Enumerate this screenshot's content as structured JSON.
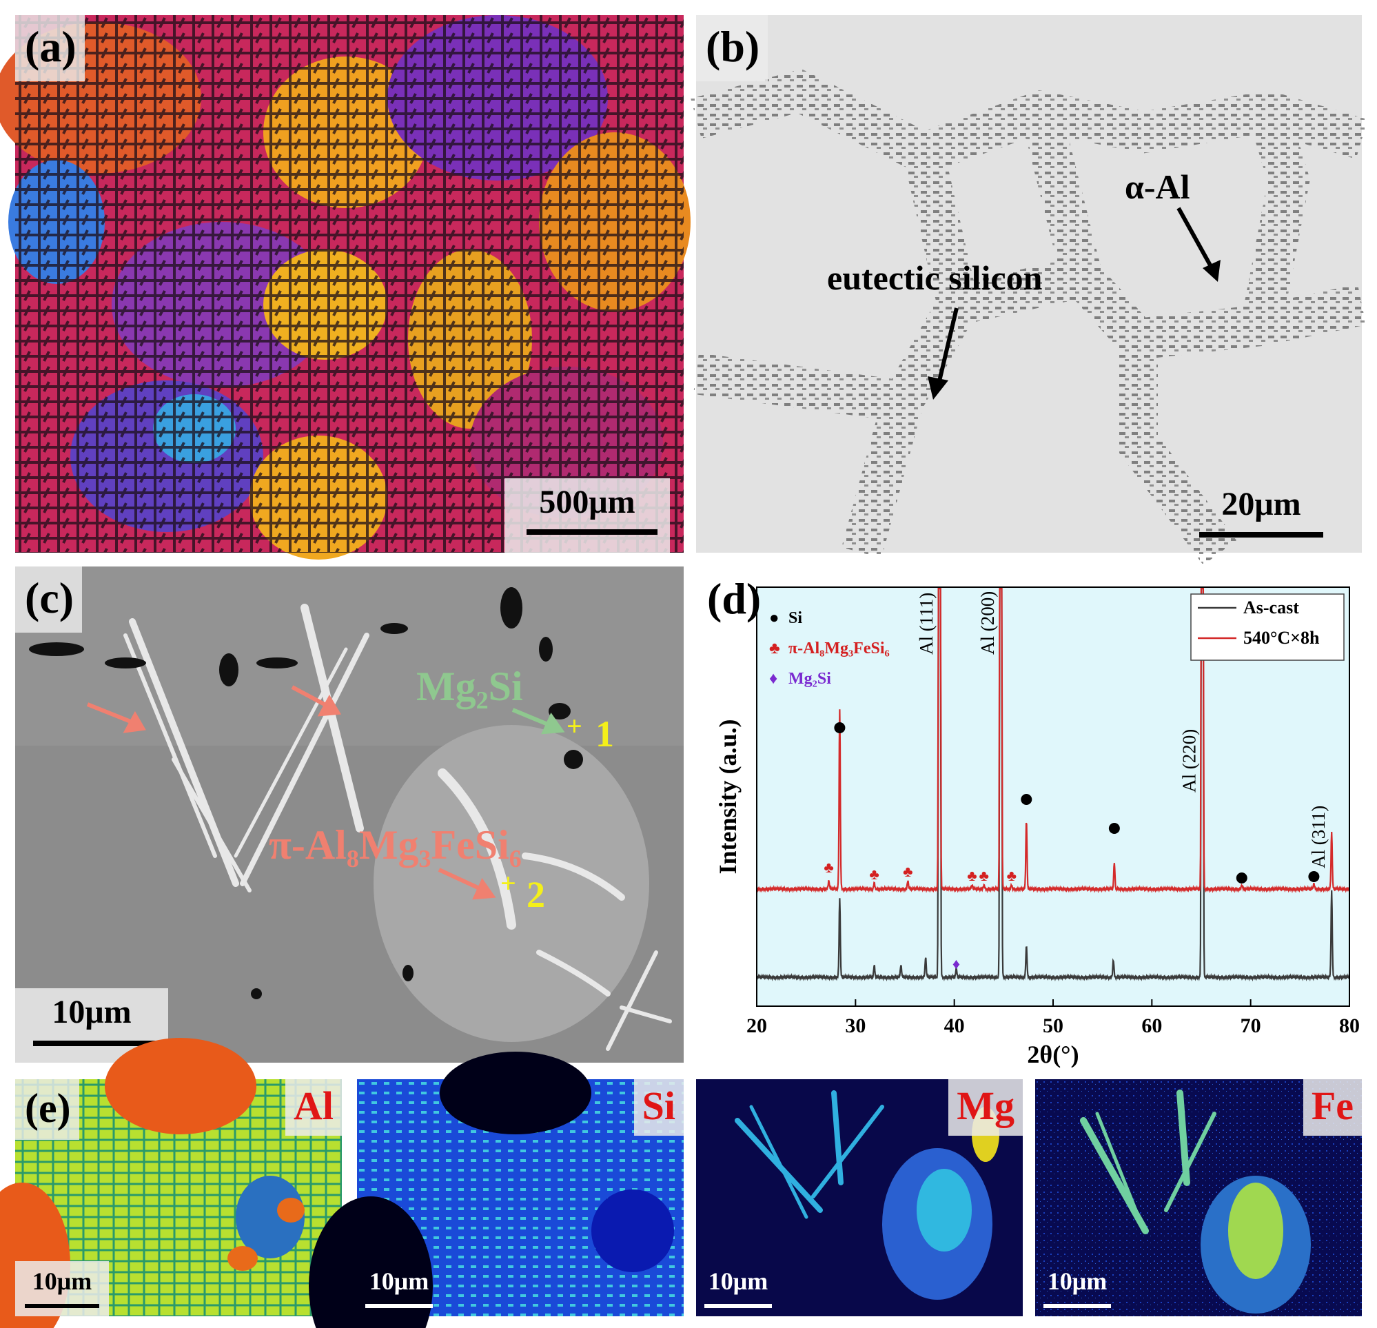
{
  "panels": {
    "a": {
      "label": "(a)",
      "scale": "500μm"
    },
    "b": {
      "label": "(b)",
      "scale": "20μm",
      "annotations": {
        "alpha_al": "α-Al",
        "eutectic": "eutectic silicon"
      }
    },
    "c": {
      "label": "(c)",
      "scale": "10μm",
      "annotations": {
        "mg2si": "Mg₂Si",
        "pi_phase": "π-Al₈Mg₃FeSi₆",
        "point1": "1",
        "point2": "2",
        "cross": "+"
      }
    },
    "e": {
      "label": "(e)",
      "maps": [
        {
          "element": "Al",
          "scale": "10μm"
        },
        {
          "element": "Si",
          "scale": "10μm"
        },
        {
          "element": "Mg",
          "scale": "10μm"
        },
        {
          "element": "Fe",
          "scale": "10μm"
        }
      ]
    }
  },
  "colors": {
    "as_cast": "#3a3a3a",
    "treated": "#d42a2a",
    "plot_bg": "#e0f7fb",
    "mg2si_marker": "#7a2ad0",
    "pi_marker": "#d42020",
    "label_red": "#e01515",
    "mg2si_text": "#8fc88f",
    "pi_text": "#f08070",
    "point_yellow": "#f4f01a"
  },
  "chart_data": {
    "type": "line",
    "panel_label": "(d)",
    "xlabel": "2θ(°)",
    "ylabel": "Intensity (a.u.)",
    "xlim": [
      20,
      80
    ],
    "xticks": [
      "20",
      "30",
      "40",
      "50",
      "60",
      "70",
      "80"
    ],
    "legend_position": "top-right",
    "series": [
      {
        "name": "As-cast",
        "color": "#3a3a3a",
        "peaks": [
          [
            28.4,
            55
          ],
          [
            38.5,
            2000
          ],
          [
            44.7,
            2000
          ],
          [
            47.3,
            22
          ],
          [
            56.1,
            12
          ],
          [
            65.1,
            2000
          ],
          [
            78.2,
            60
          ]
        ],
        "minor_peaks": [
          [
            31.9,
            8
          ],
          [
            34.6,
            9
          ],
          [
            37.1,
            14
          ],
          [
            40.2,
            6
          ]
        ]
      },
      {
        "name": "540°C×8h",
        "color": "#d42a2a",
        "peaks": [
          [
            28.4,
            125
          ],
          [
            38.5,
            2000
          ],
          [
            44.7,
            2000
          ],
          [
            47.3,
            48
          ],
          [
            56.2,
            18
          ],
          [
            65.1,
            2000
          ],
          [
            69.1,
            3
          ],
          [
            76.4,
            4
          ],
          [
            78.2,
            40
          ]
        ],
        "minor_peaks": [
          [
            27.3,
            6
          ],
          [
            31.9,
            4
          ],
          [
            35.3,
            6
          ],
          [
            41.8,
            3
          ],
          [
            43.0,
            3
          ],
          [
            45.8,
            3
          ]
        ]
      }
    ],
    "phase_legend": [
      {
        "symbol": "●",
        "label": "Si",
        "color": "#000000"
      },
      {
        "symbol": "♣",
        "label": "π-Al₈Mg₃FeSi₆",
        "color": "#d42020"
      },
      {
        "symbol": "♦",
        "label": "Mg₂Si",
        "color": "#7a2ad0"
      }
    ],
    "reflections": [
      {
        "label": "Al (111)",
        "x": 38.5
      },
      {
        "label": "Al (200)",
        "x": 44.7
      },
      {
        "label": "Al (220)",
        "x": 65.1
      },
      {
        "label": "Al (311)",
        "x": 78.2
      }
    ],
    "si_markers": [
      28.4,
      47.3,
      56.2,
      69.1,
      76.4
    ],
    "pi_markers": [
      27.3,
      31.9,
      35.3,
      41.8,
      43.0,
      45.8
    ],
    "mg2si_markers": [
      40.2
    ]
  }
}
